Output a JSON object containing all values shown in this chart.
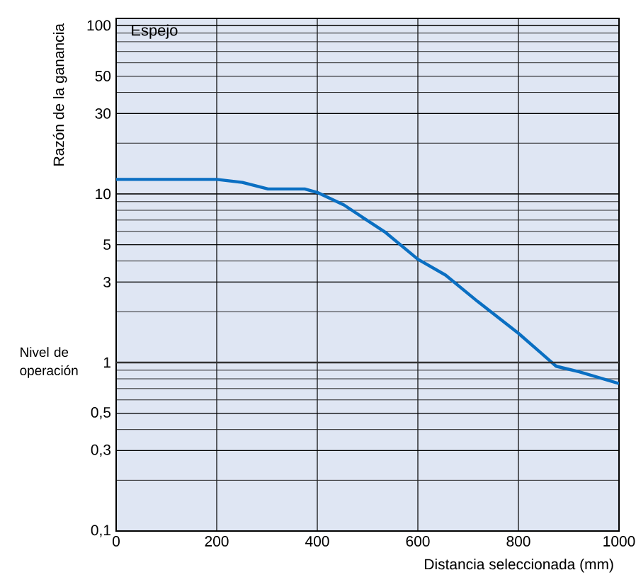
{
  "chart_data": {
    "type": "line",
    "xlabel": "Distancia seleccionada (mm)",
    "ylabel": "Razón de la ganancia",
    "annotations": [
      "Espejo"
    ],
    "log": "y",
    "grid": true,
    "marker": "none",
    "line_style": "solid",
    "xlim": [
      0,
      1000
    ],
    "ylim": [
      0.1,
      110
    ],
    "xticks": [
      0,
      200,
      400,
      600,
      800,
      1000
    ],
    "yticks": [
      {
        "value": 0.1,
        "label": "0,1"
      },
      {
        "value": 0.3,
        "label": "0,3"
      },
      {
        "value": 0.5,
        "label": "0,5"
      },
      1,
      3,
      5,
      10,
      30,
      50,
      100
    ],
    "ref_lines": [
      {
        "axis": "y",
        "value": 1,
        "label": "Nivel de operación",
        "color": "#333333"
      }
    ],
    "series": [
      {
        "color": "#0a6fc2",
        "x": [
          0,
          200,
          251,
          302,
          375,
          400,
          453,
          536,
          600,
          655,
          719,
          800,
          875,
          921,
          1000
        ],
        "values": [
          12.2,
          12.2,
          11.7,
          10.7,
          10.7,
          10.2,
          8.6,
          5.9,
          4.1,
          3.3,
          2.3,
          1.49,
          0.95,
          0.88,
          0.75
        ]
      }
    ]
  }
}
